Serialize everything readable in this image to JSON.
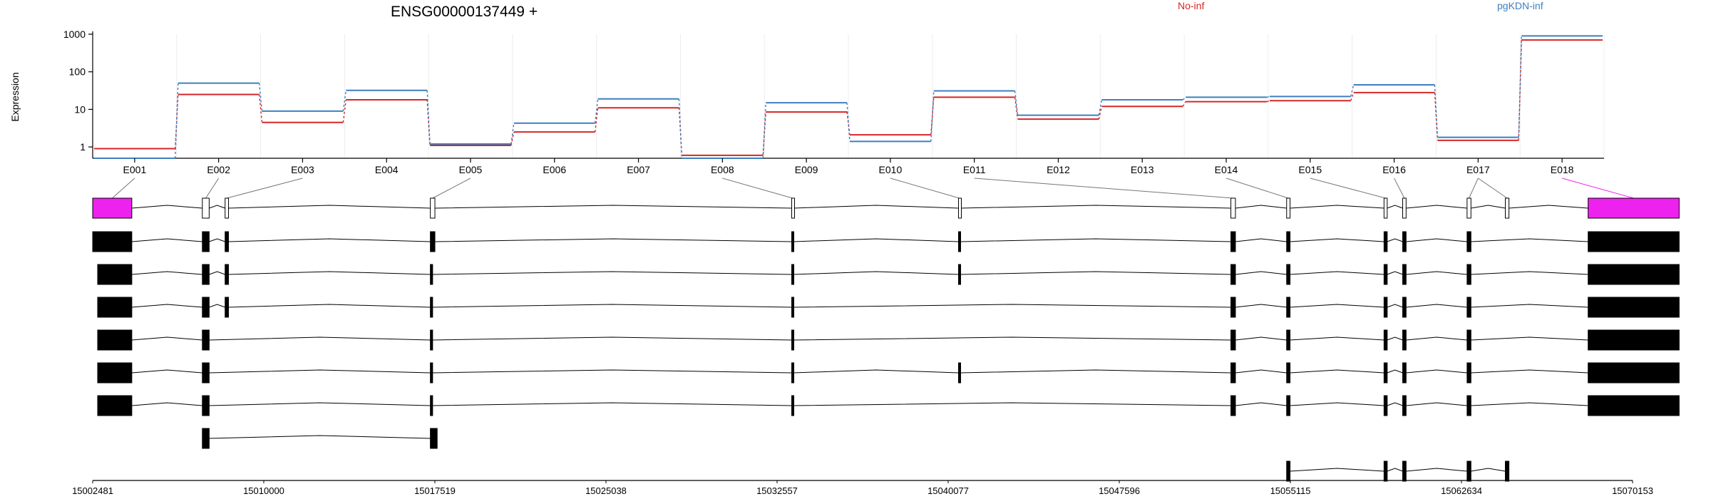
{
  "chart_data": {
    "type": "line",
    "title": "ENSG00000137449 +",
    "ylabel": "Expression",
    "xlabel": "",
    "yscale": "log",
    "ylim": [
      0.5,
      1000
    ],
    "yticks": [
      "1",
      "10",
      "100",
      "1000"
    ],
    "yticks_values": [
      1,
      10,
      100,
      1000
    ],
    "grid": true,
    "legend_position": "top",
    "categories": [
      "E001",
      "E002",
      "E003",
      "E004",
      "E005",
      "E006",
      "E007",
      "E008",
      "E009",
      "E010",
      "E011",
      "E012",
      "E013",
      "E014",
      "E015",
      "E016",
      "E017",
      "E018"
    ],
    "highlighted_exon": "E018",
    "series": [
      {
        "name": "No-inf",
        "color": "#d62728",
        "values": [
          0.9,
          25,
          4.5,
          18,
          1.1,
          2.5,
          11,
          0.6,
          8.5,
          2.1,
          21,
          5.5,
          12,
          16,
          17,
          28,
          1.5,
          700
        ]
      },
      {
        "name": "pgKDN-inf",
        "color": "#3f7fbf",
        "values": [
          0.5,
          50,
          9,
          32,
          1.2,
          4.3,
          19,
          0.5,
          15,
          1.4,
          31,
          7,
          18,
          21,
          22,
          45,
          1.8,
          900
        ]
      }
    ],
    "gene_model": {
      "highlight_color": "#ee22ee",
      "coordinate_ticks": [
        "15002481",
        "15010000",
        "15017519",
        "15025038",
        "15032557",
        "15040077",
        "15047596",
        "15055115",
        "15062634",
        "15070153"
      ],
      "coordinate_tick_values": [
        15002481,
        15010000,
        15017519,
        15025038,
        15032557,
        15040077,
        15047596,
        15055115,
        15062634,
        15070153
      ],
      "exon_bins": [
        [
          15002481,
          15004200
        ],
        [
          15007300,
          15007600
        ],
        [
          15008300,
          15008450
        ],
        [
          15017320,
          15017520
        ],
        [
          15033200,
          15033280
        ],
        [
          15040530,
          15040610
        ],
        [
          15052500,
          15052700
        ],
        [
          15054950,
          15055100
        ],
        [
          15059230,
          15059370
        ],
        [
          15060050,
          15060200
        ],
        [
          15062880,
          15063050
        ],
        [
          15064560,
          15064720
        ],
        [
          15068200,
          15072200
        ]
      ],
      "exon_bin_labels": [
        "E001",
        "E002",
        "E003",
        "E005",
        "E008",
        "E010",
        "E011",
        "E014",
        "E015",
        "E016",
        "E017",
        "E017",
        "E018"
      ],
      "transcripts": [
        {
          "exons": [
            [
              15002481,
              15004200
            ],
            [
              15007300,
              15007600
            ],
            [
              15008300,
              15008450
            ],
            [
              15017320,
              15017520
            ],
            [
              15033200,
              15033280
            ],
            [
              15040530,
              15040610
            ],
            [
              15052500,
              15052700
            ],
            [
              15054950,
              15055100
            ],
            [
              15059230,
              15059370
            ],
            [
              15060050,
              15060200
            ],
            [
              15062880,
              15063050
            ],
            [
              15068200,
              15072200
            ]
          ]
        },
        {
          "exons": [
            [
              15002700,
              15004200
            ],
            [
              15007300,
              15007600
            ],
            [
              15008300,
              15008450
            ],
            [
              15017320,
              15017420
            ],
            [
              15033200,
              15033280
            ],
            [
              15040530,
              15040610
            ],
            [
              15052500,
              15052700
            ],
            [
              15054950,
              15055100
            ],
            [
              15059230,
              15059370
            ],
            [
              15060050,
              15060200
            ],
            [
              15062880,
              15063050
            ],
            [
              15068200,
              15072200
            ]
          ]
        },
        {
          "exons": [
            [
              15002700,
              15004200
            ],
            [
              15007300,
              15007600
            ],
            [
              15008300,
              15008450
            ],
            [
              15017320,
              15017420
            ],
            [
              15033200,
              15033280
            ],
            [
              15052500,
              15052700
            ],
            [
              15054950,
              15055100
            ],
            [
              15059230,
              15059370
            ],
            [
              15060050,
              15060200
            ],
            [
              15062880,
              15063050
            ],
            [
              15068200,
              15072200
            ]
          ]
        },
        {
          "exons": [
            [
              15002700,
              15004200
            ],
            [
              15007300,
              15007600
            ],
            [
              15017320,
              15017420
            ],
            [
              15033200,
              15033280
            ],
            [
              15052500,
              15052700
            ],
            [
              15054950,
              15055100
            ],
            [
              15059230,
              15059370
            ],
            [
              15060050,
              15060200
            ],
            [
              15062880,
              15063050
            ],
            [
              15068200,
              15072200
            ]
          ]
        },
        {
          "exons": [
            [
              15002700,
              15004200
            ],
            [
              15007300,
              15007600
            ],
            [
              15017320,
              15017420
            ],
            [
              15033200,
              15033280
            ],
            [
              15040530,
              15040610
            ],
            [
              15052500,
              15052700
            ],
            [
              15054950,
              15055100
            ],
            [
              15059230,
              15059370
            ],
            [
              15060050,
              15060200
            ],
            [
              15062880,
              15063050
            ],
            [
              15068200,
              15072200
            ]
          ]
        },
        {
          "exons": [
            [
              15002700,
              15004200
            ],
            [
              15007300,
              15007600
            ],
            [
              15017320,
              15017420
            ],
            [
              15033200,
              15033280
            ],
            [
              15052500,
              15052700
            ],
            [
              15054950,
              15055100
            ],
            [
              15059230,
              15059370
            ],
            [
              15060050,
              15060200
            ],
            [
              15062880,
              15063050
            ],
            [
              15068200,
              15072200
            ]
          ]
        },
        {
          "exons": [
            [
              15007300,
              15007600
            ],
            [
              15017320,
              15017620
            ]
          ]
        },
        {
          "exons": [
            [
              15054950,
              15055100
            ],
            [
              15059230,
              15059370
            ],
            [
              15060050,
              15060200
            ],
            [
              15062880,
              15063050
            ],
            [
              15064560,
              15064720
            ]
          ]
        }
      ]
    }
  }
}
